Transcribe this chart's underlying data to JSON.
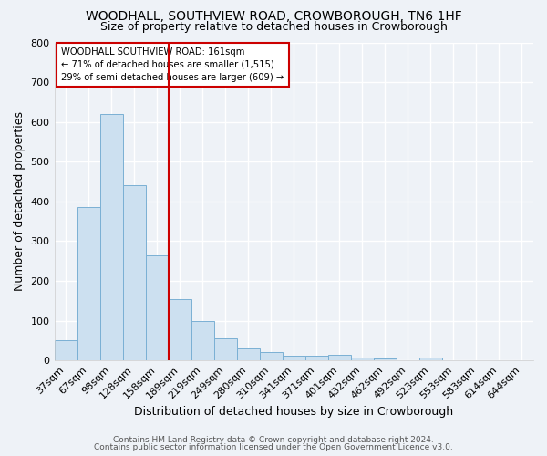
{
  "title": "WOODHALL, SOUTHVIEW ROAD, CROWBOROUGH, TN6 1HF",
  "subtitle": "Size of property relative to detached houses in Crowborough",
  "xlabel": "Distribution of detached houses by size in Crowborough",
  "ylabel": "Number of detached properties",
  "footnote1": "Contains HM Land Registry data © Crown copyright and database right 2024.",
  "footnote2": "Contains public sector information licensed under the Open Government Licence v3.0.",
  "categories": [
    "37sqm",
    "67sqm",
    "98sqm",
    "128sqm",
    "158sqm",
    "189sqm",
    "219sqm",
    "249sqm",
    "280sqm",
    "310sqm",
    "341sqm",
    "371sqm",
    "401sqm",
    "432sqm",
    "462sqm",
    "492sqm",
    "523sqm",
    "553sqm",
    "583sqm",
    "614sqm",
    "644sqm"
  ],
  "values": [
    50,
    385,
    620,
    440,
    265,
    153,
    98,
    55,
    30,
    20,
    11,
    12,
    13,
    8,
    5,
    0,
    8,
    0,
    0,
    0,
    0
  ],
  "bar_color": "#cce0f0",
  "bar_edge_color": "#7ab0d4",
  "red_line_x": 4.5,
  "annotation_line1": "WOODHALL SOUTHVIEW ROAD: 161sqm",
  "annotation_line2": "← 71% of detached houses are smaller (1,515)",
  "annotation_line3": "29% of semi-detached houses are larger (609) →",
  "annotation_box_color": "white",
  "annotation_box_edge": "#cc0000",
  "ylim": [
    0,
    800
  ],
  "yticks": [
    0,
    100,
    200,
    300,
    400,
    500,
    600,
    700,
    800
  ],
  "background_color": "#eef2f7",
  "grid_color": "white",
  "title_fontsize": 10,
  "subtitle_fontsize": 9,
  "xlabel_fontsize": 9,
  "ylabel_fontsize": 9,
  "tick_fontsize": 8,
  "footnote_fontsize": 6.5
}
